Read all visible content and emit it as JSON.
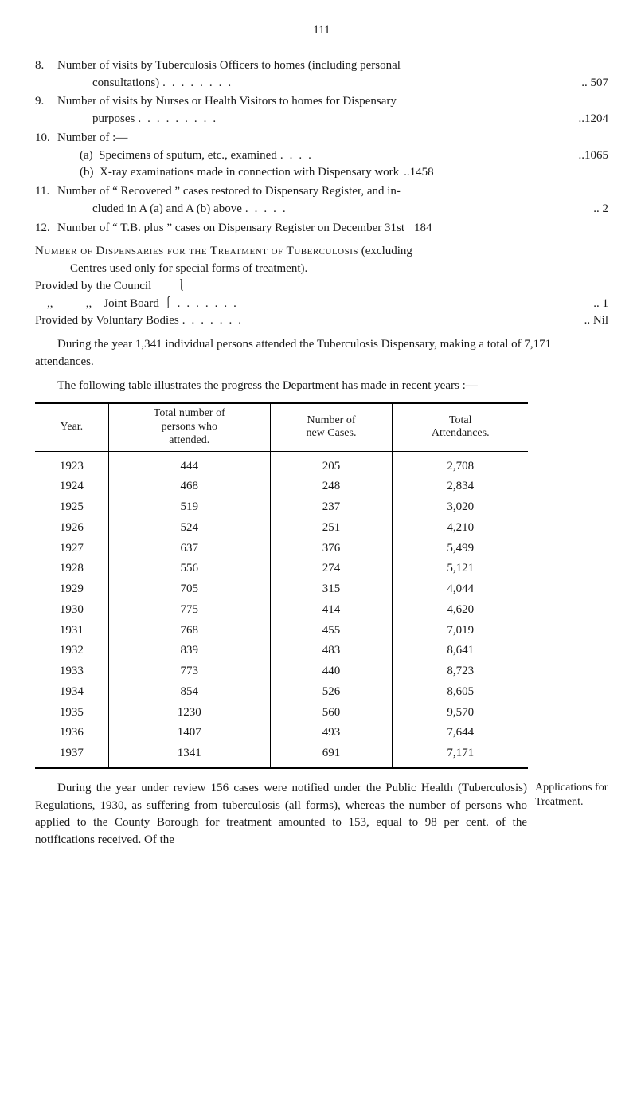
{
  "page_number": "111",
  "items": {
    "8": {
      "lead": "Number of visits by Tuberculosis Officers to homes (including personal",
      "cont": "consultations)",
      "value": ".. 507"
    },
    "9": {
      "lead": "Number of visits by Nurses or Health Visitors to homes for Dispensary",
      "cont": "purposes",
      "value": "..1204"
    },
    "10": {
      "lead": "Number of :—",
      "a_lead": "(a)  Specimens of sputum, etc., examined",
      "a_val": "..1065",
      "b_lead": "(b)  X-ray examinations made in connection with Dispensary work",
      "b_val": "..1458"
    },
    "11": {
      "lead": "Number of “ Recovered ” cases restored to Dispensary Register, and in-",
      "cont": "cluded in A (a) and A (b) above",
      "value": "..    2"
    },
    "12": {
      "lead": "Number of “ T.B. plus ” cases on Dispensary Register on December 31st",
      "value": "184"
    }
  },
  "dispensaries": {
    "title": "Number of Dispensaries for the Treatment of Tuberculosis",
    "tail": " (excluding",
    "line2": "Centres used only for special forms of treatment).",
    "provided_council": "Provided by the Council        ⎱",
    "provided_joint": "    ,,           ,,    Joint Board ⎰",
    "provided_val": "..    1",
    "voluntary": "Provided by Voluntary Bodies",
    "voluntary_val": ".. Nil"
  },
  "para1": "During the year 1,341 individual persons attended the Tuberculosis Dispensary, making a total of 7,171 attendances.",
  "para2": "The following table illustrates the progress the Department has made in recent years :—",
  "table": {
    "headers": [
      "Year.",
      "Total number of\npersons who\nattended.",
      "Number of\nnew Cases.",
      "Total\nAttendances."
    ],
    "rows": [
      [
        "1923",
        "444",
        "205",
        "2,708"
      ],
      [
        "1924",
        "468",
        "248",
        "2,834"
      ],
      [
        "1925",
        "519",
        "237",
        "3,020"
      ],
      [
        "1926",
        "524",
        "251",
        "4,210"
      ],
      [
        "1927",
        "637",
        "376",
        "5,499"
      ],
      [
        "1928",
        "556",
        "274",
        "5,121"
      ],
      [
        "1929",
        "705",
        "315",
        "4,044"
      ],
      [
        "1930",
        "775",
        "414",
        "4,620"
      ],
      [
        "1931",
        "768",
        "455",
        "7,019"
      ],
      [
        "1932",
        "839",
        "483",
        "8,641"
      ],
      [
        "1933",
        "773",
        "440",
        "8,723"
      ],
      [
        "1934",
        "854",
        "526",
        "8,605"
      ],
      [
        "1935",
        "1230",
        "560",
        "9,570"
      ],
      [
        "1936",
        "1407",
        "493",
        "7,644"
      ],
      [
        "1937",
        "1341",
        "691",
        "7,171"
      ]
    ]
  },
  "closing": {
    "main": "During the year under review 156 cases were notified under the Public Health (Tuberculosis) Regulations, 1930, as suffering from tuberculosis (all forms), whereas the number of persons who applied to the County Borough for treatment amounted to 153, equal to 98 per cent. of the notifications received.  Of the",
    "side": "Applications for Treatment."
  }
}
